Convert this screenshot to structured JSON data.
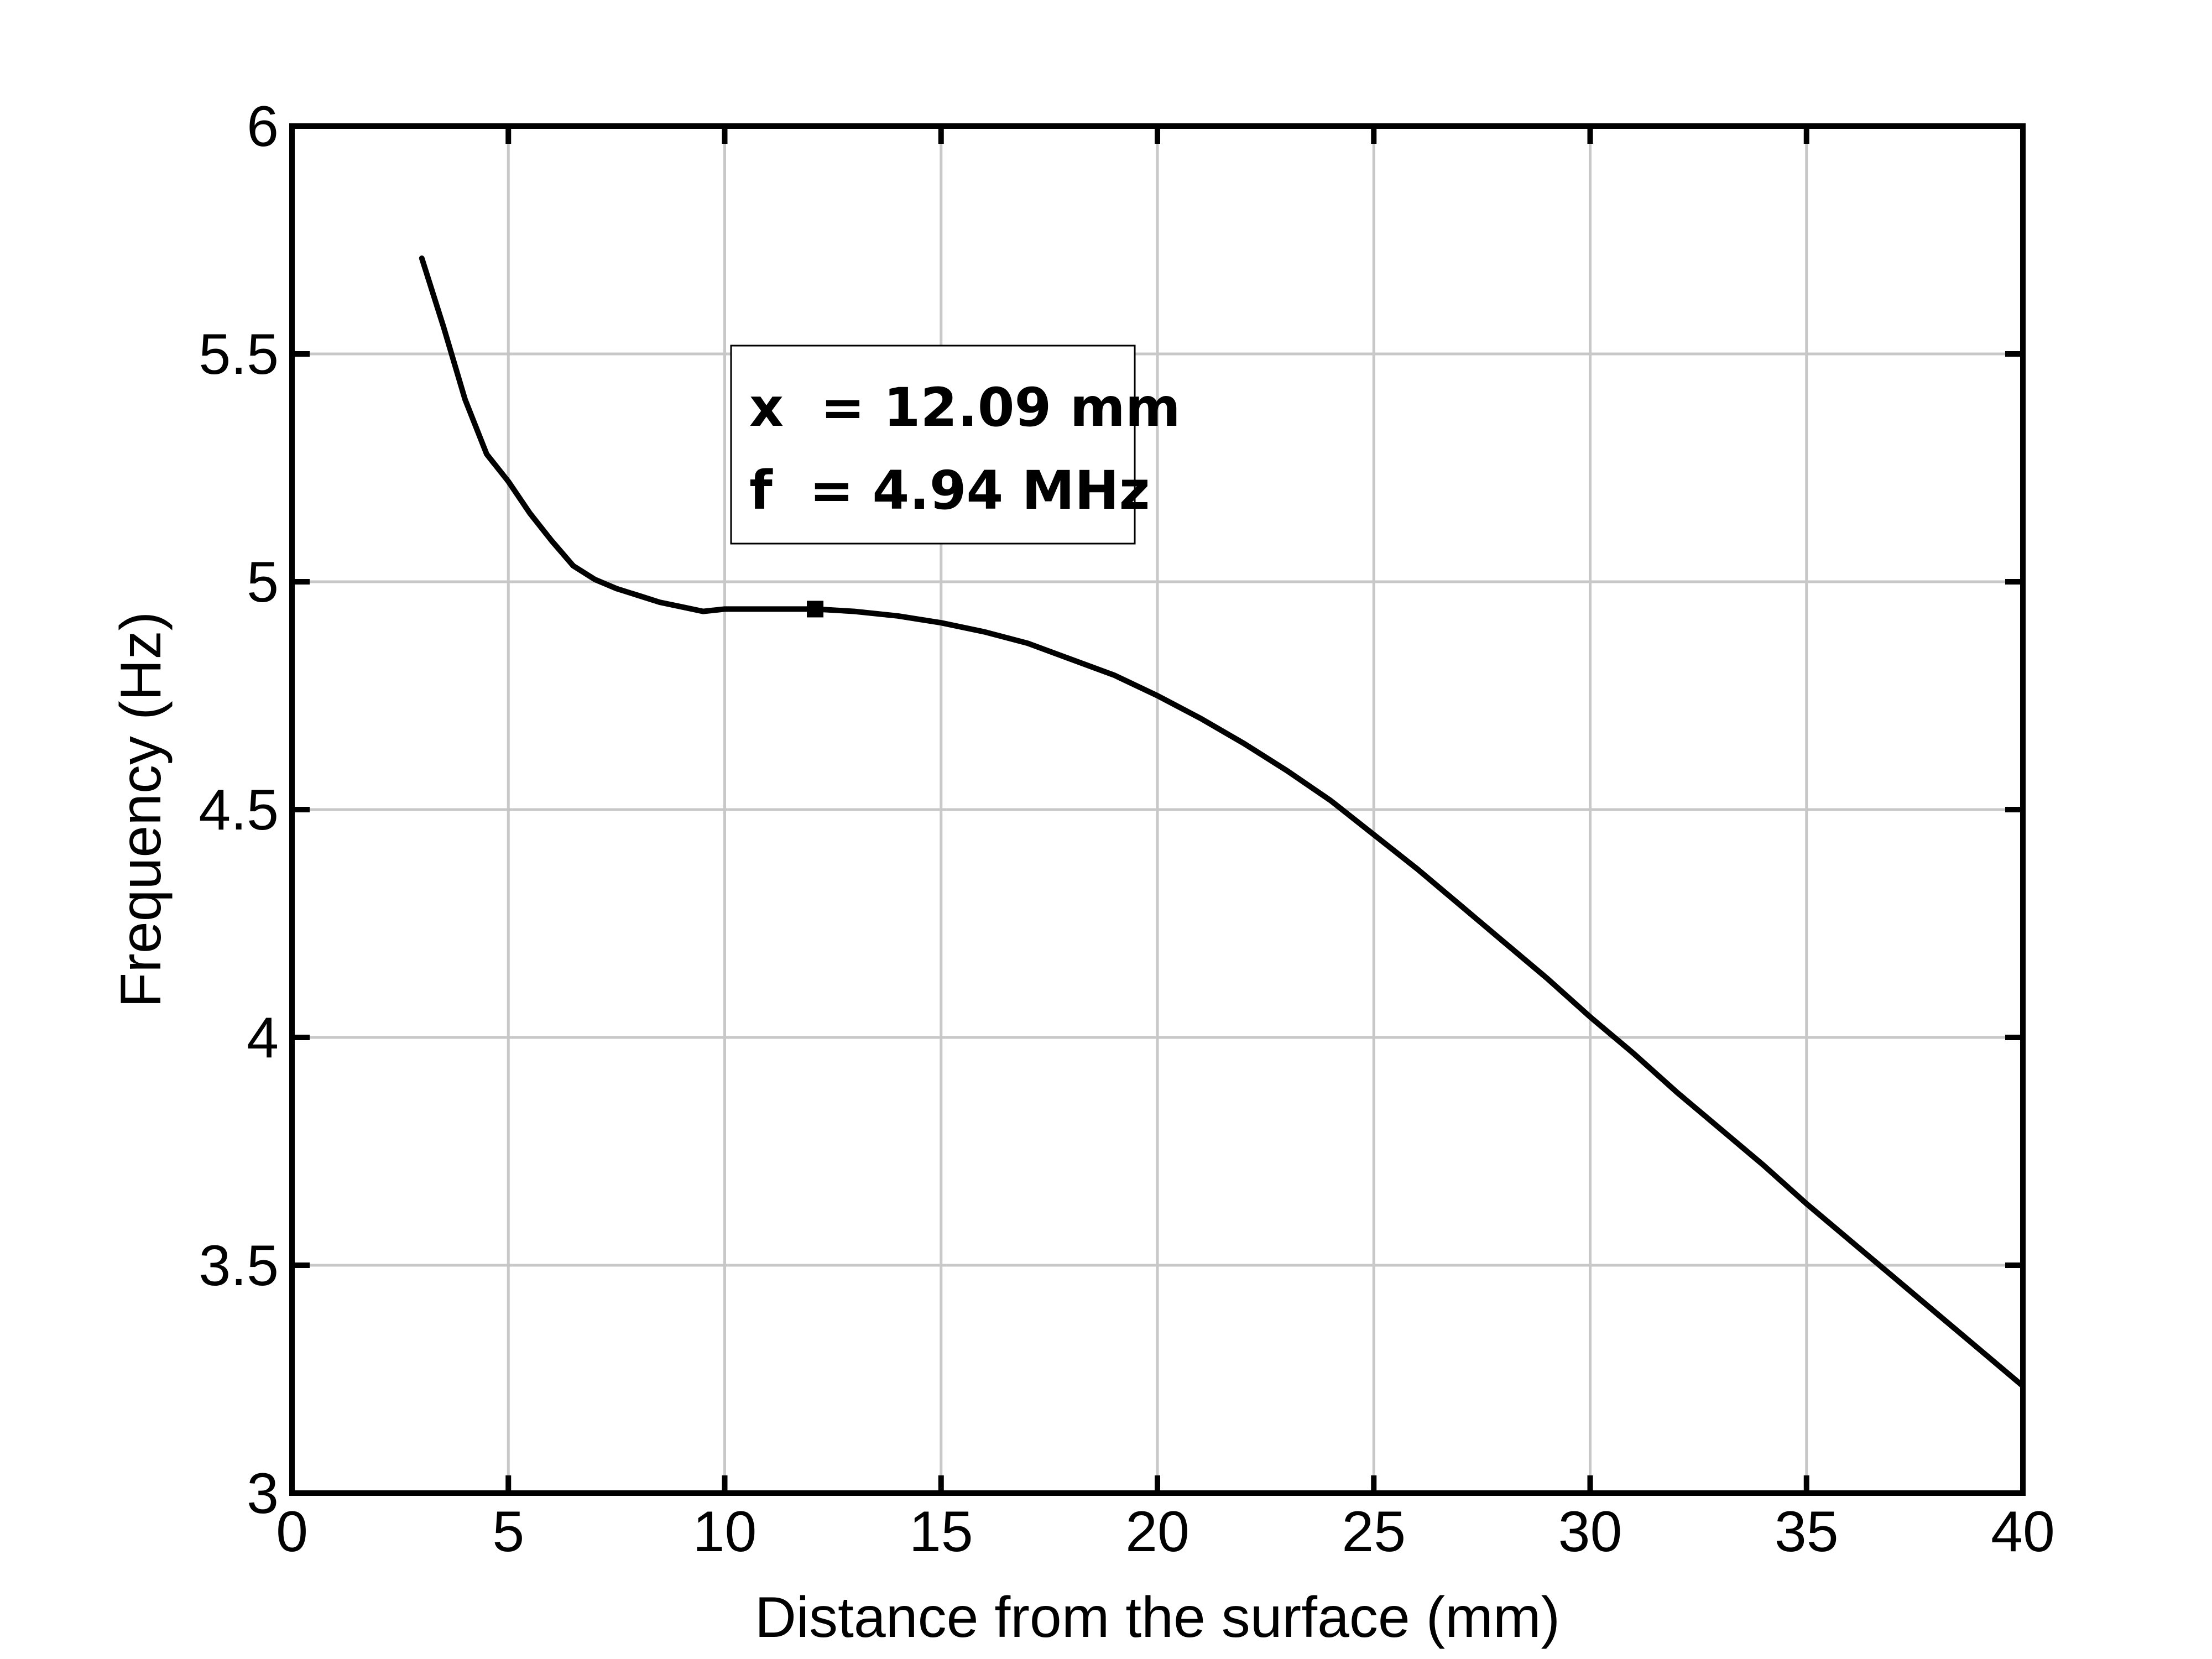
{
  "chart_data": {
    "type": "line",
    "title": "",
    "xlabel": "Distance from the surface (mm)",
    "ylabel": "Frequency (Hz)",
    "xlim": [
      0,
      40
    ],
    "ylim": [
      3,
      6
    ],
    "x_ticks": [
      0,
      5,
      10,
      15,
      20,
      25,
      30,
      35,
      40
    ],
    "x_tick_labels": [
      "0",
      "5",
      "10",
      "15",
      "20",
      "25",
      "30",
      "35",
      "40"
    ],
    "y_ticks": [
      3,
      3.5,
      4,
      4.5,
      5,
      5.5,
      6
    ],
    "y_tick_labels": [
      "3",
      "3.5",
      "4",
      "4.5",
      "5",
      "5.5",
      "6"
    ],
    "grid": true,
    "series": [
      {
        "x": [
          3,
          3.5,
          4,
          4.5,
          5,
          5.5,
          6,
          6.5,
          7,
          7.5,
          8,
          8.5,
          9,
          9.5,
          10,
          11,
          12.09,
          13,
          14,
          15,
          16,
          17,
          18,
          19,
          20,
          21,
          22,
          23,
          24,
          25,
          26,
          27,
          28,
          29,
          30,
          31,
          32,
          33,
          34,
          35,
          36,
          37,
          38,
          39,
          40
        ],
        "y": [
          5.71,
          5.56,
          5.4,
          5.28,
          5.22,
          5.15,
          5.09,
          5.035,
          5.005,
          4.985,
          4.97,
          4.955,
          4.945,
          4.935,
          4.94,
          4.94,
          4.94,
          4.935,
          4.925,
          4.91,
          4.89,
          4.865,
          4.83,
          4.795,
          4.75,
          4.7,
          4.645,
          4.585,
          4.52,
          4.445,
          4.37,
          4.29,
          4.21,
          4.13,
          4.045,
          3.965,
          3.88,
          3.8,
          3.72,
          3.635,
          3.555,
          3.475,
          3.395,
          3.315,
          3.235
        ],
        "color": "#000000"
      }
    ],
    "marker": {
      "x": 12.09,
      "y": 4.94
    },
    "annotation": {
      "line1": "x  = 12.09 mm",
      "line2": "f  = 4.94 MHz"
    }
  }
}
